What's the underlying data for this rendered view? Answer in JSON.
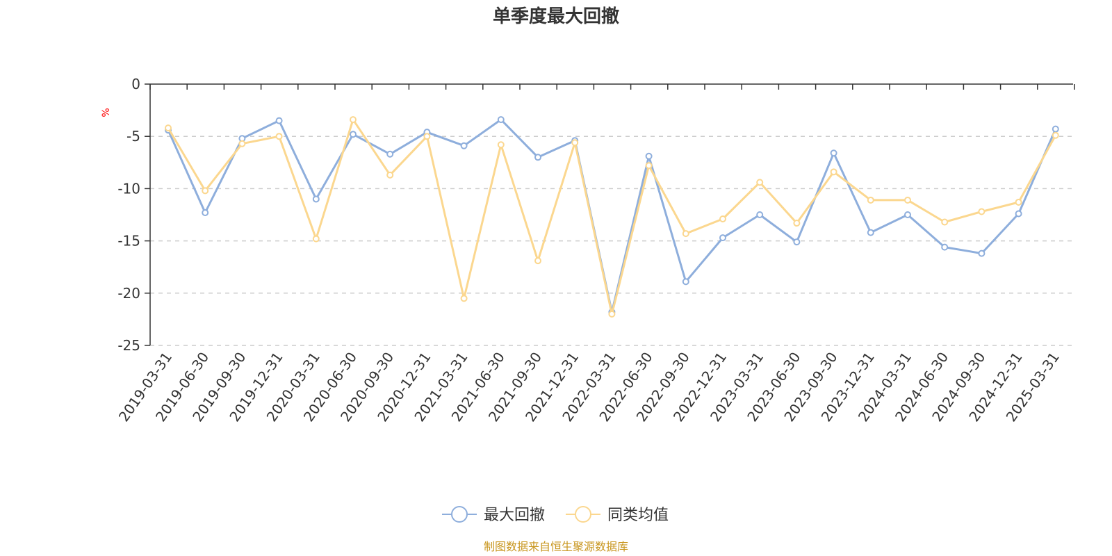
{
  "chart_data": {
    "type": "line",
    "title": "单季度最大回撤",
    "ylabel": "%",
    "xlabel": "",
    "ylim": [
      -25,
      0
    ],
    "yticks": [
      0,
      -5,
      -10,
      -15,
      -20,
      -25
    ],
    "categories": [
      "2019-03-31",
      "2019-06-30",
      "2019-09-30",
      "2019-12-31",
      "2020-03-31",
      "2020-06-30",
      "2020-09-30",
      "2020-12-31",
      "2021-03-31",
      "2021-06-30",
      "2021-09-30",
      "2021-12-31",
      "2022-03-31",
      "2022-06-30",
      "2022-09-30",
      "2022-12-31",
      "2023-03-31",
      "2023-06-30",
      "2023-09-30",
      "2023-12-31",
      "2024-03-31",
      "2024-06-30",
      "2024-09-30",
      "2024-12-31",
      "2025-03-31"
    ],
    "series": [
      {
        "name": "最大回撤",
        "color": "#8eaedc",
        "values": [
          -4.4,
          -12.3,
          -5.2,
          -3.5,
          -11.0,
          -4.8,
          -6.7,
          -4.6,
          -5.9,
          -3.4,
          -7.0,
          -5.4,
          -21.8,
          -6.9,
          -18.9,
          -14.7,
          -12.5,
          -15.1,
          -6.6,
          -14.2,
          -12.5,
          -15.6,
          -16.2,
          -12.4,
          -4.3
        ]
      },
      {
        "name": "同类均值",
        "color": "#fbd78f",
        "values": [
          -4.2,
          -10.2,
          -5.7,
          -5.0,
          -14.8,
          -3.4,
          -8.7,
          -5.0,
          -20.5,
          -5.8,
          -16.9,
          -5.6,
          -22.0,
          -7.8,
          -14.3,
          -12.9,
          -9.4,
          -13.3,
          -8.4,
          -11.1,
          -11.1,
          -13.2,
          -12.2,
          -11.3,
          -4.9
        ]
      }
    ],
    "grid": true,
    "legend_position": "bottom"
  },
  "source": "制图数据来自恒生聚源数据库"
}
